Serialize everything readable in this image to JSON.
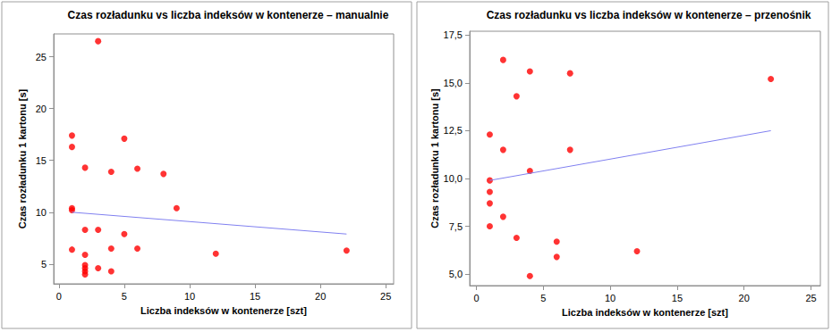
{
  "chart_data": [
    {
      "type": "scatter",
      "title": "Czas rozładunku vs liczba indeksów w kontenerze – manualnie",
      "x_label": "Liczba indeksów w kontenerze [szt]",
      "y_label": "Czas rozładunku 1 kartonu [s]",
      "xlim": [
        -0.4,
        25.6
      ],
      "xticks": [
        0,
        5,
        10,
        15,
        20,
        25
      ],
      "ylim": [
        3.1,
        27.2
      ],
      "yticks": [
        5,
        10,
        15,
        20,
        25
      ],
      "grid": false,
      "series": [
        {
          "type": "scatter",
          "marker": "circle",
          "color": "#ff0000",
          "x": [
            1,
            1,
            1,
            1,
            1,
            2,
            2,
            2,
            2,
            2,
            2,
            2,
            3,
            3,
            3,
            4,
            4,
            4,
            5,
            5,
            6,
            6,
            8,
            9,
            12,
            22
          ],
          "values": [
            17.4,
            16.3,
            10.4,
            10.2,
            6.4,
            14.3,
            8.3,
            5.9,
            4.9,
            4.6,
            4.3,
            4.0,
            26.5,
            8.3,
            4.6,
            13.9,
            6.5,
            4.3,
            17.1,
            7.9,
            14.2,
            6.5,
            13.7,
            10.4,
            6.0,
            6.3
          ]
        },
        {
          "type": "line",
          "line_style": "solid",
          "color": "#8080f0",
          "x": [
            1,
            22
          ],
          "values": [
            10.0,
            7.9
          ]
        }
      ]
    },
    {
      "type": "scatter",
      "title": "Czas rozładunku vs liczba indeksów w kontenerze – przenośnik",
      "x_label": "Liczba indeksów w kontenerze [szt]",
      "y_label": "Czas rozładunku 1 kartonu [s]",
      "xlim": [
        -0.5,
        25.7
      ],
      "xticks": [
        0,
        5,
        10,
        15,
        20,
        25
      ],
      "ylim": [
        4.4,
        17.7
      ],
      "yticks": [
        {
          "value": 5,
          "label": "5,0"
        },
        {
          "value": 7.5,
          "label": "7,5"
        },
        {
          "value": 10,
          "label": "10,0"
        },
        {
          "value": 12.5,
          "label": "12,5"
        },
        {
          "value": 15,
          "label": "15,0"
        },
        {
          "value": 17.5,
          "label": "17,5"
        }
      ],
      "grid": false,
      "series": [
        {
          "type": "scatter",
          "marker": "circle",
          "color": "#ff0000",
          "x": [
            1,
            1,
            1,
            1,
            1,
            2,
            2,
            2,
            3,
            3,
            4,
            4,
            4,
            6,
            6,
            7,
            7,
            12,
            22
          ],
          "values": [
            12.3,
            9.9,
            9.3,
            8.7,
            7.5,
            16.2,
            11.5,
            8.0,
            14.3,
            6.9,
            15.6,
            10.4,
            4.9,
            6.7,
            5.9,
            15.5,
            11.5,
            6.2,
            15.2
          ]
        },
        {
          "type": "line",
          "line_style": "solid",
          "color": "#8080f0",
          "x": [
            1,
            22
          ],
          "values": [
            9.9,
            12.5
          ]
        }
      ]
    }
  ]
}
